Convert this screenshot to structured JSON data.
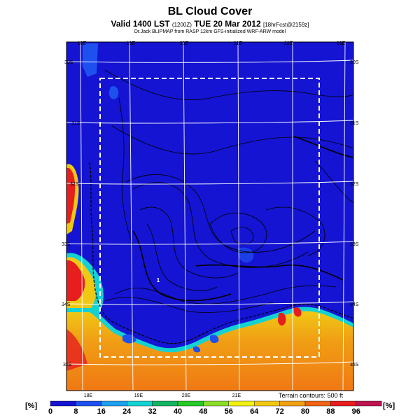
{
  "header": {
    "title": "BL Cloud Cover",
    "subtitle_main": "Valid 1400 LST",
    "subtitle_paren": "(1200Z)",
    "subtitle_date": "TUE 20 Mar 2012",
    "subtitle_fcst": "[18hrFcst@2159z]",
    "credit": "Dr.Jack BLIPMAP from RASP 12km GFS-initialized WRF-ARW model"
  },
  "map": {
    "lon_labels_top": [
      "18E",
      "19E",
      "20E",
      "21E",
      "22E",
      "23E"
    ],
    "lon_labels_bottom": [
      "18E",
      "19E",
      "20E",
      "21E"
    ],
    "lat_labels_left": [
      "30S",
      "31S",
      "32S",
      "33S",
      "34S",
      "35S"
    ],
    "lat_labels_right": [
      "30S",
      "31S",
      "32S",
      "33S",
      "34S",
      "35S"
    ],
    "marker_label": "1",
    "terrain_note": "Terrain contours: 500 ft"
  },
  "colorbar": {
    "unit_left": "[%]",
    "unit_right": "[%]",
    "ticks": [
      "0",
      "8",
      "16",
      "24",
      "32",
      "40",
      "48",
      "56",
      "64",
      "72",
      "80",
      "88",
      "96"
    ],
    "colors": [
      "#1414d2",
      "#1e50f0",
      "#1ea0f0",
      "#14d2d2",
      "#14b464",
      "#28c828",
      "#8cdc28",
      "#f0f014",
      "#f0c814",
      "#f0a014",
      "#f06414",
      "#e61e1e",
      "#be1450",
      "#781478"
    ]
  },
  "colors": {
    "clear_sky": "#1414d2",
    "low_cover": "#1e50f0",
    "cloudy_band": "#f0a014",
    "grid": "#ffffff",
    "domain_box": "#ffffff"
  }
}
